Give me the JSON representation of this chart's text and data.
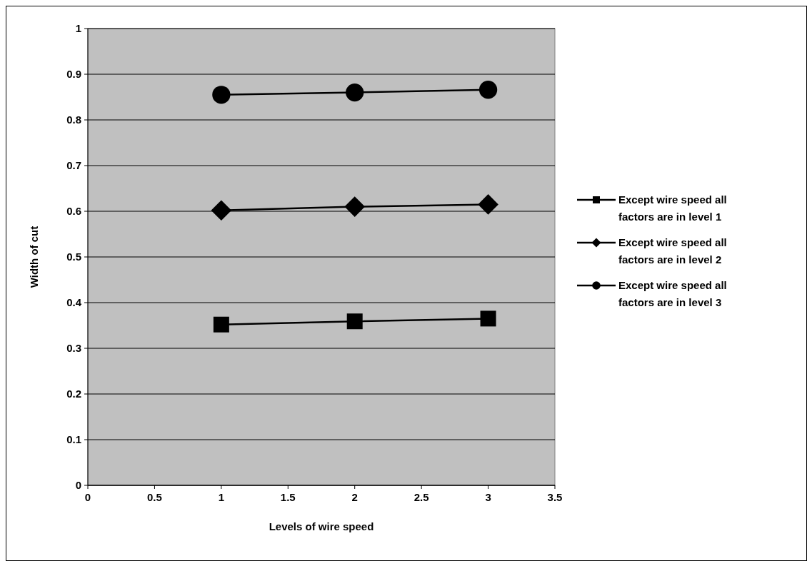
{
  "chart_data": {
    "type": "line",
    "xlabel": "Levels of wire speed",
    "ylabel": "Width of cut",
    "x": [
      1,
      2,
      3
    ],
    "series": [
      {
        "name": "Except wire speed all factors are in level 1",
        "color": "#000000",
        "marker": "square",
        "values": [
          0.352,
          0.359,
          0.365
        ]
      },
      {
        "name": "Except wire speed all factors are in level 2",
        "color": "#000000",
        "marker": "diamond",
        "values": [
          0.602,
          0.61,
          0.615
        ]
      },
      {
        "name": "Except wire speed all factors are in level 3",
        "color": "#000000",
        "marker": "circle",
        "values": [
          0.855,
          0.86,
          0.866
        ]
      }
    ],
    "xlim": [
      0,
      3.5
    ],
    "xticks": [
      0,
      0.5,
      1,
      1.5,
      2,
      2.5,
      3,
      3.5
    ],
    "ylim": [
      0,
      1
    ],
    "yticks": [
      0,
      0.1,
      0.2,
      0.3,
      0.4,
      0.5,
      0.6,
      0.7,
      0.8,
      0.9,
      1
    ],
    "grid": "y",
    "legend": "right",
    "line_style": "solid"
  }
}
